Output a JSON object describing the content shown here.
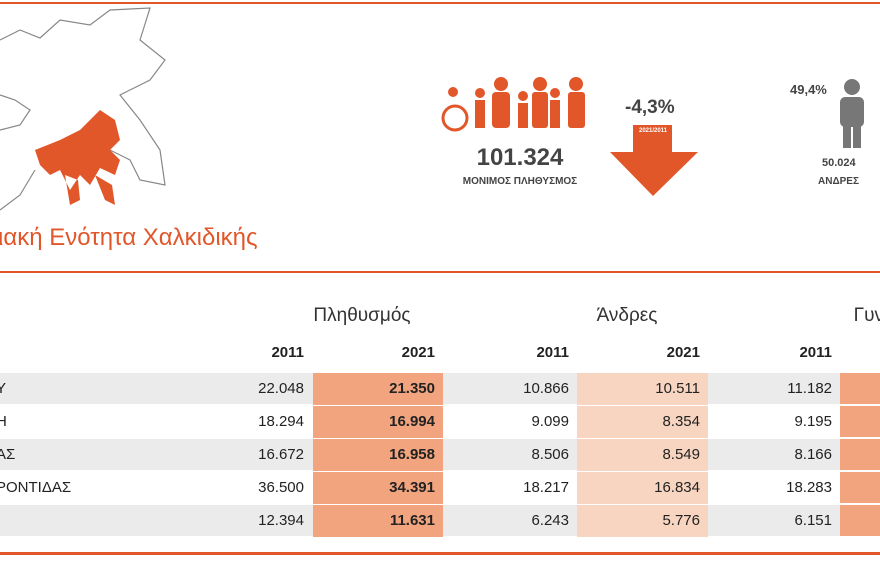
{
  "header": {
    "title": "ιακή Ενότητα Χαλκιδικής",
    "population": "101.324",
    "population_label": "ΜΟΝΙΜΟΣ ΠΛΗΘΥΣΜΟΣ",
    "change": "-4,3%",
    "change_period": "2021/2011",
    "men_share": "49,4%",
    "men": "50.024",
    "men_label": "ΑΝΔΡΕΣ"
  },
  "table": {
    "groups": [
      "Πληθυσμός",
      "Άνδρες",
      "Γυναίκες"
    ],
    "years": [
      "2011",
      "2021",
      "2011",
      "2021",
      "2011"
    ],
    "rows": [
      {
        "name": "Υ",
        "cells": [
          "22.048",
          "21.350",
          "10.866",
          "10.511",
          "11.182"
        ]
      },
      {
        "name": "Η",
        "cells": [
          "18.294",
          "16.994",
          "9.099",
          "8.354",
          "9.195"
        ]
      },
      {
        "name": "ΑΣ",
        "cells": [
          "16.672",
          "16.958",
          "8.506",
          "8.549",
          "8.166"
        ]
      },
      {
        "name": "ΡΟΝΤΙΔΑΣ",
        "cells": [
          "36.500",
          "34.391",
          "18.217",
          "16.834",
          "18.283"
        ]
      },
      {
        "cells": [
          "12.394",
          "11.631",
          "6.243",
          "5.776",
          "6.151"
        ]
      }
    ]
  }
}
